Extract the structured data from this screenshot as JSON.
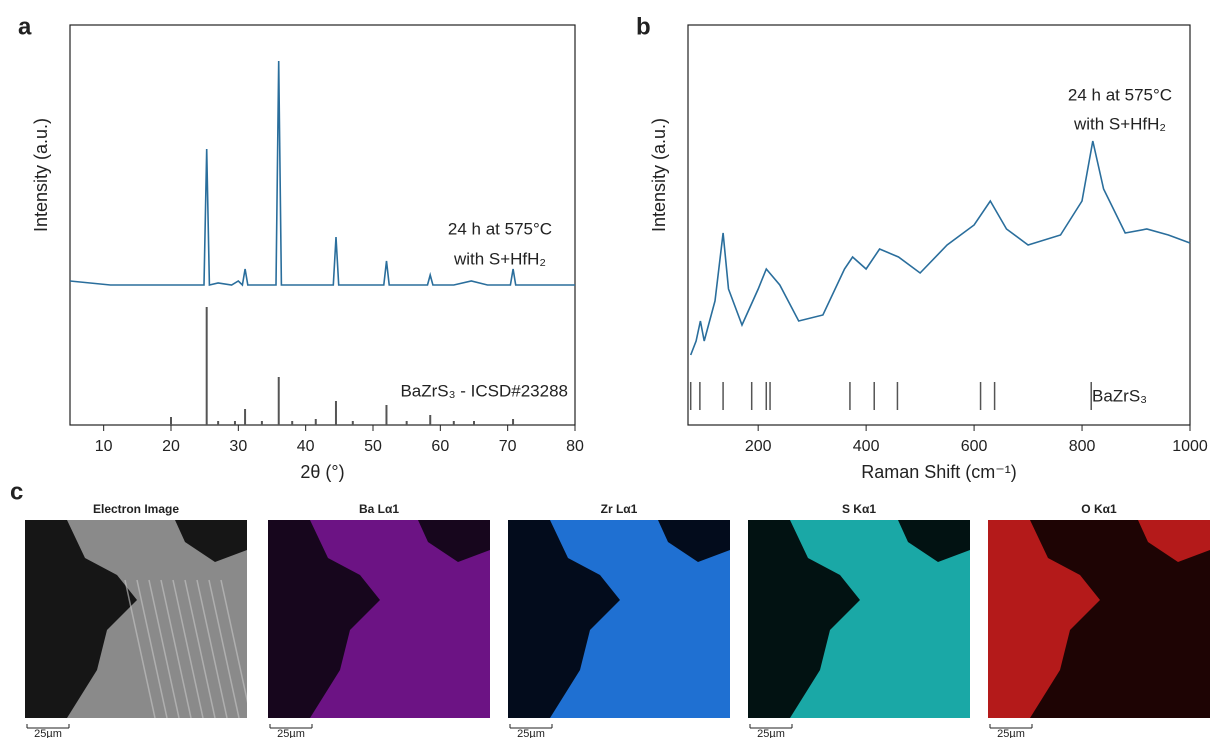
{
  "chart_data": [
    {
      "type": "line",
      "label": "a",
      "xlabel": "2θ (°)",
      "ylabel": "Intensity (a.u.)",
      "xlim": [
        5,
        80
      ],
      "xticks": [
        10,
        20,
        30,
        40,
        50,
        60,
        70,
        80
      ],
      "ylim": [
        0,
        100
      ],
      "annotations": [
        "24 h at 575°C",
        "with S+HfH₂",
        "BaZrS₃ - ICSD#23288"
      ],
      "series": [
        {
          "color": "#2a6e9c",
          "style": "line",
          "x": [
            5,
            8,
            11,
            14,
            17,
            20,
            22,
            24,
            24.9,
            25.3,
            25.7,
            27,
            29,
            30,
            30.6,
            31,
            31.4,
            33,
            35,
            35.6,
            36,
            36.4,
            38,
            41,
            43,
            44.1,
            44.5,
            44.9,
            47,
            50,
            51.6,
            52,
            52.4,
            55,
            58.1,
            58.5,
            58.9,
            62,
            64.6,
            67,
            70.4,
            70.8,
            71.2,
            75,
            80
          ],
          "values": [
            36,
            35.5,
            35,
            35,
            35,
            35,
            35,
            35,
            35,
            69,
            35,
            35.5,
            35,
            36,
            35,
            39,
            35,
            35,
            35,
            35,
            91,
            35,
            35,
            35,
            35,
            35,
            47,
            35,
            35,
            35,
            35,
            41,
            35,
            35,
            35,
            37.5,
            35,
            35,
            36,
            35,
            35,
            39,
            35,
            35,
            35
          ]
        },
        {
          "color": "#555555",
          "style": "stick",
          "x": [
            20,
            25.3,
            27,
            29.5,
            31,
            33.5,
            36,
            38,
            41.5,
            44.5,
            47,
            52,
            55,
            58.5,
            62,
            65,
            70.8
          ],
          "values": [
            2,
            29.5,
            1,
            1,
            4,
            1,
            12,
            1,
            1.5,
            6,
            1,
            5,
            1,
            2.5,
            1,
            1,
            1.5
          ]
        }
      ]
    },
    {
      "type": "line",
      "label": "b",
      "xlabel": "Raman Shift (cm⁻¹)",
      "ylabel": "Intensity (a.u.)",
      "xlim": [
        70,
        1000
      ],
      "xticks": [
        200,
        400,
        600,
        800,
        1000
      ],
      "ylim": [
        0,
        100
      ],
      "annotations": [
        "24 h at 575°C",
        "with S+HfH₂",
        "BaZrS₃"
      ],
      "series": [
        {
          "color": "#2a6e9c",
          "style": "line",
          "x": [
            75,
            85,
            93,
            100,
            120,
            135,
            145,
            170,
            200,
            215,
            240,
            275,
            320,
            360,
            375,
            400,
            425,
            460,
            500,
            550,
            600,
            630,
            660,
            700,
            760,
            800,
            820,
            840,
            880,
            920,
            960,
            1000
          ],
          "values": [
            17.5,
            21,
            26,
            21,
            31,
            48,
            34,
            25,
            34,
            39,
            35,
            26,
            27.5,
            39,
            42,
            39,
            44,
            42,
            38,
            45,
            50,
            56,
            49,
            45,
            47.5,
            56,
            71,
            59,
            48,
            49,
            47.5,
            45.5
          ]
        },
        {
          "color": "#555555",
          "style": "position",
          "x": [
            75,
            92,
            135,
            188,
            215,
            222,
            370,
            415,
            458,
            612,
            638,
            817
          ]
        }
      ]
    }
  ],
  "maps": {
    "label": "c",
    "titles": [
      "Electron Image",
      "Ba Lα1",
      "Zr Lα1",
      "S Kα1",
      "O Kα1"
    ],
    "scale_bar": "25µm"
  }
}
